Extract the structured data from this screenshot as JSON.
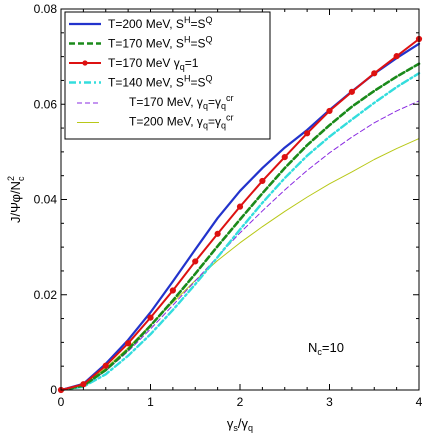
{
  "chart_data": {
    "type": "line",
    "xlabel": "γs/γq",
    "ylabel": "J/Ψφ/N_c^2",
    "xlim": [
      0,
      4
    ],
    "ylim": [
      0,
      0.08
    ],
    "x_ticks": [
      "0",
      "1",
      "2",
      "3",
      "4"
    ],
    "y_ticks": [
      "0",
      "0.02",
      "0.04",
      "0.06",
      "0.08"
    ],
    "annotation": "N_c=10",
    "legend_placement": "top-left",
    "grid": false,
    "series": [
      {
        "name": "T=200 MeV, S^H=S^Q",
        "color": "#2233cc",
        "style": "solid-thick",
        "x": [
          0,
          0.25,
          0.5,
          0.75,
          1,
          1.25,
          1.5,
          1.75,
          2,
          2.25,
          2.5,
          2.75,
          3,
          3.25,
          3.5,
          3.75,
          4
        ],
        "y": [
          0,
          0.0013,
          0.0055,
          0.0105,
          0.0163,
          0.0228,
          0.0295,
          0.0361,
          0.0418,
          0.0466,
          0.0509,
          0.0546,
          0.0588,
          0.0627,
          0.0664,
          0.0697,
          0.0727
        ]
      },
      {
        "name": "T=170 MeV, S^H=S^Q",
        "color": "#1a8a1a",
        "style": "dashed-thick",
        "x": [
          0,
          0.25,
          0.5,
          0.75,
          1,
          1.25,
          1.5,
          1.75,
          2,
          2.25,
          2.5,
          2.75,
          3,
          3.25,
          3.5,
          3.75,
          4
        ],
        "y": [
          0,
          0.0009,
          0.0042,
          0.0085,
          0.0135,
          0.0188,
          0.0244,
          0.0302,
          0.0358,
          0.0413,
          0.0466,
          0.0514,
          0.0556,
          0.0595,
          0.0628,
          0.0658,
          0.0685
        ]
      },
      {
        "name": "T=170 MeV γq=1",
        "color": "#dd1111",
        "style": "solid-markers",
        "x": [
          0,
          0.25,
          0.5,
          0.75,
          1,
          1.25,
          1.5,
          1.75,
          2,
          2.25,
          2.5,
          2.75,
          3,
          3.25,
          3.5,
          3.75,
          4
        ],
        "y": [
          0,
          0.0012,
          0.0051,
          0.0098,
          0.0152,
          0.0209,
          0.027,
          0.0328,
          0.0385,
          0.0439,
          0.0489,
          0.0539,
          0.0586,
          0.0626,
          0.0665,
          0.0701,
          0.0737
        ]
      },
      {
        "name": "T=140 MeV, S^H=S^Q",
        "color": "#33dddd",
        "style": "dashdot-thick",
        "x": [
          0,
          0.25,
          0.5,
          0.75,
          1,
          1.25,
          1.5,
          1.75,
          2,
          2.25,
          2.5,
          2.75,
          3,
          3.25,
          3.5,
          3.75,
          4
        ],
        "y": [
          0,
          0.0007,
          0.0033,
          0.0072,
          0.0117,
          0.0168,
          0.0222,
          0.0279,
          0.0337,
          0.0393,
          0.0445,
          0.0492,
          0.0532,
          0.0568,
          0.0603,
          0.0636,
          0.0665
        ]
      },
      {
        "name": "T=170 MeV, γq=γq^cr",
        "color": "#8a2be2",
        "style": "dashed-thin",
        "x": [
          0,
          0.25,
          0.5,
          0.75,
          1,
          1.25,
          1.5,
          1.75,
          2,
          2.25,
          2.5,
          2.75,
          3,
          3.25,
          3.5,
          3.75,
          4
        ],
        "y": [
          0,
          0.0009,
          0.004,
          0.0081,
          0.0128,
          0.0178,
          0.0229,
          0.028,
          0.033,
          0.0376,
          0.042,
          0.0461,
          0.0498,
          0.0531,
          0.0561,
          0.0586,
          0.0607
        ]
      },
      {
        "name": "T=200 MeV, γq=γq^cr",
        "color": "#b8c818",
        "style": "solid-thin",
        "x": [
          0,
          0.25,
          0.5,
          0.75,
          1,
          1.25,
          1.5,
          1.75,
          2,
          2.25,
          2.5,
          2.75,
          3,
          3.25,
          3.5,
          3.75,
          4
        ],
        "y": [
          0,
          0.0011,
          0.0046,
          0.0089,
          0.0137,
          0.0184,
          0.023,
          0.0272,
          0.0309,
          0.0343,
          0.0375,
          0.0405,
          0.0433,
          0.0458,
          0.0484,
          0.0507,
          0.0528
        ]
      }
    ]
  },
  "legend_labels": [
    {
      "main": "T=200 MeV, S",
      "sup1": "H",
      "mid": "=S",
      "sup2": "Q",
      "tail": ""
    },
    {
      "main": "T=170 MeV, S",
      "sup1": "H",
      "mid": "=S",
      "sup2": "Q",
      "tail": ""
    },
    {
      "main": "T=170 MeV γ",
      "sub1": "q",
      "mid": "=1"
    },
    {
      "main": "T=140 MeV, S",
      "sup1": "H",
      "mid": "=S",
      "sup2": "Q",
      "tail": ""
    },
    {
      "main": "T=170 MeV, γ",
      "sub1": "q",
      "mid": "=γ",
      "sub2": "q",
      "sup2": "cr"
    },
    {
      "main": "T=200 MeV, γ",
      "sub1": "q",
      "mid": "=γ",
      "sub2": "q",
      "sup2": "cr"
    }
  ]
}
